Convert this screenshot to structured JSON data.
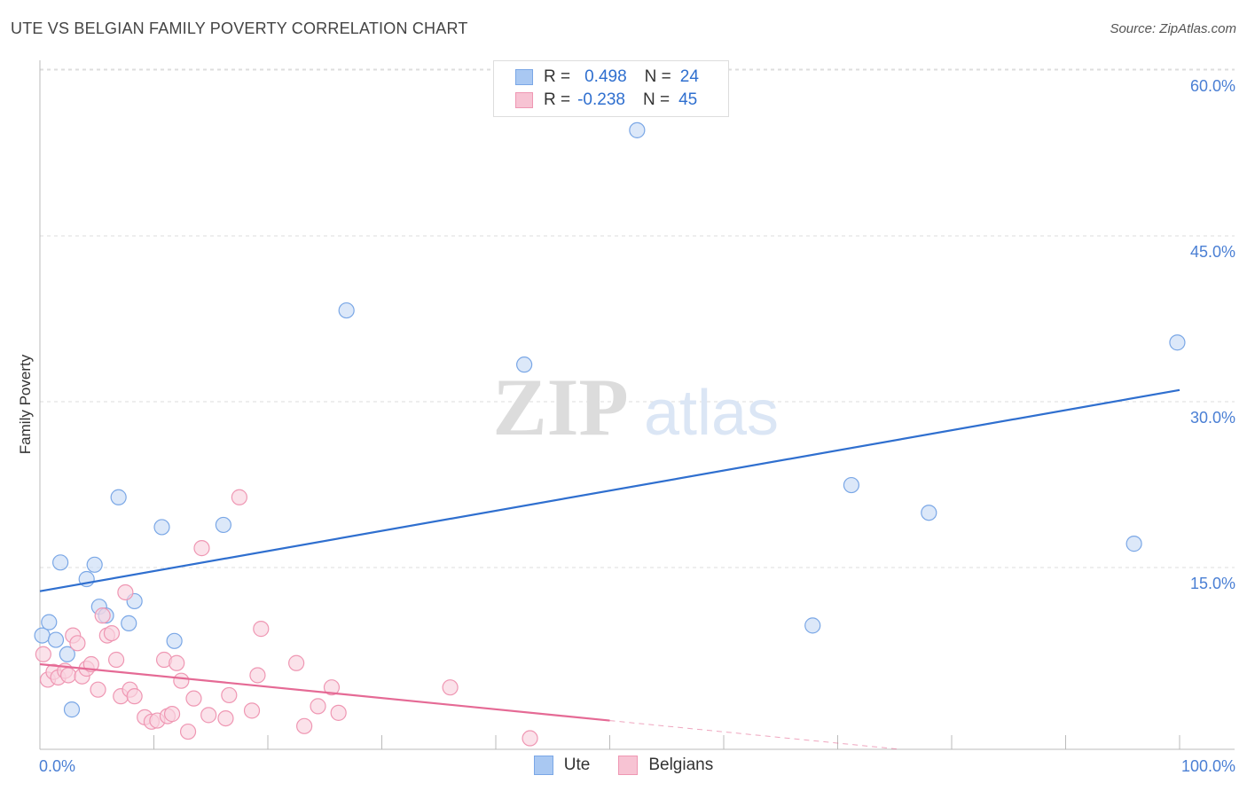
{
  "header": {
    "title": "UTE VS BELGIAN FAMILY POVERTY CORRELATION CHART",
    "source": "Source: ZipAtlas.com"
  },
  "watermark": {
    "zip": "ZIP",
    "atlas": "atlas"
  },
  "legend": {
    "rows": [
      {
        "r_label": "R =",
        "r_value": "0.498",
        "n_label": "N =",
        "n_value": "24",
        "color": "#a9c8f2",
        "border": "#7aa7e6"
      },
      {
        "r_label": "R =",
        "r_value": "-0.238",
        "n_label": "N =",
        "n_value": "45",
        "color": "#f7c3d3",
        "border": "#ef97b3"
      }
    ]
  },
  "bottom_legend": [
    {
      "label": "Ute",
      "color": "#a9c8f2",
      "border": "#7aa7e6"
    },
    {
      "label": "Belgians",
      "color": "#f7c3d3",
      "border": "#ef97b3"
    }
  ],
  "chart_data": {
    "type": "scatter",
    "title": "UTE VS BELGIAN FAMILY POVERTY CORRELATION CHART",
    "xlabel": "",
    "ylabel": "Family Poverty",
    "xlim": [
      0,
      100
    ],
    "ylim": [
      0,
      60
    ],
    "x_tick_labels": [
      "0.0%",
      "100.0%"
    ],
    "y_ticks": [
      15,
      30,
      45,
      60
    ],
    "y_tick_labels": [
      "15.0%",
      "30.0%",
      "45.0%",
      "60.0%"
    ],
    "grid": true,
    "series": [
      {
        "name": "Ute",
        "color": "#7aa7e6",
        "fill": "#c9dcf6",
        "line_color": "#2f6fcf",
        "trend": {
          "x": [
            0,
            100
          ],
          "y": [
            14.3,
            32.5
          ],
          "dashed_from": null
        },
        "points": [
          [
            0.2,
            10.3
          ],
          [
            0.8,
            11.5
          ],
          [
            1.4,
            9.9
          ],
          [
            1.8,
            16.9
          ],
          [
            2.4,
            8.6
          ],
          [
            2.8,
            3.6
          ],
          [
            4.1,
            15.4
          ],
          [
            4.8,
            16.7
          ],
          [
            5.2,
            12.9
          ],
          [
            5.8,
            12.1
          ],
          [
            6.9,
            22.8
          ],
          [
            7.8,
            11.4
          ],
          [
            8.3,
            13.4
          ],
          [
            10.7,
            20.1
          ],
          [
            11.8,
            9.8
          ],
          [
            16.1,
            20.3
          ],
          [
            26.9,
            39.7
          ],
          [
            42.5,
            34.8
          ],
          [
            52.4,
            56.0
          ],
          [
            67.8,
            11.2
          ],
          [
            71.2,
            23.9
          ],
          [
            78.0,
            21.4
          ],
          [
            96.0,
            18.6
          ],
          [
            99.8,
            36.8
          ]
        ]
      },
      {
        "name": "Belgians",
        "color": "#ef97b3",
        "fill": "#f9d2de",
        "line_color": "#e56a95",
        "trend": {
          "x": [
            0,
            50,
            100
          ],
          "y": [
            7.7,
            2.6,
            -2.5
          ],
          "dashed_from": 50
        },
        "points": [
          [
            0.3,
            8.6
          ],
          [
            0.7,
            6.3
          ],
          [
            1.2,
            7.0
          ],
          [
            1.6,
            6.5
          ],
          [
            2.2,
            7.1
          ],
          [
            2.5,
            6.7
          ],
          [
            2.9,
            10.3
          ],
          [
            3.3,
            9.6
          ],
          [
            3.7,
            6.6
          ],
          [
            4.1,
            7.3
          ],
          [
            4.5,
            7.7
          ],
          [
            5.1,
            5.4
          ],
          [
            5.5,
            12.1
          ],
          [
            5.9,
            10.3
          ],
          [
            6.3,
            10.5
          ],
          [
            6.7,
            8.1
          ],
          [
            7.1,
            4.8
          ],
          [
            7.5,
            14.2
          ],
          [
            7.9,
            5.4
          ],
          [
            8.3,
            4.8
          ],
          [
            9.2,
            2.9
          ],
          [
            9.8,
            2.5
          ],
          [
            10.3,
            2.6
          ],
          [
            10.9,
            8.1
          ],
          [
            11.2,
            3.0
          ],
          [
            11.6,
            3.2
          ],
          [
            12.0,
            7.8
          ],
          [
            12.4,
            6.2
          ],
          [
            13.0,
            1.6
          ],
          [
            13.5,
            4.6
          ],
          [
            14.2,
            18.2
          ],
          [
            14.8,
            3.1
          ],
          [
            16.3,
            2.8
          ],
          [
            16.6,
            4.9
          ],
          [
            17.5,
            22.8
          ],
          [
            18.6,
            3.5
          ],
          [
            19.1,
            6.7
          ],
          [
            19.4,
            10.9
          ],
          [
            22.5,
            7.8
          ],
          [
            23.2,
            2.1
          ],
          [
            24.4,
            3.9
          ],
          [
            25.6,
            5.6
          ],
          [
            26.2,
            3.3
          ],
          [
            36.0,
            5.6
          ],
          [
            43.0,
            1.0
          ]
        ]
      }
    ]
  }
}
